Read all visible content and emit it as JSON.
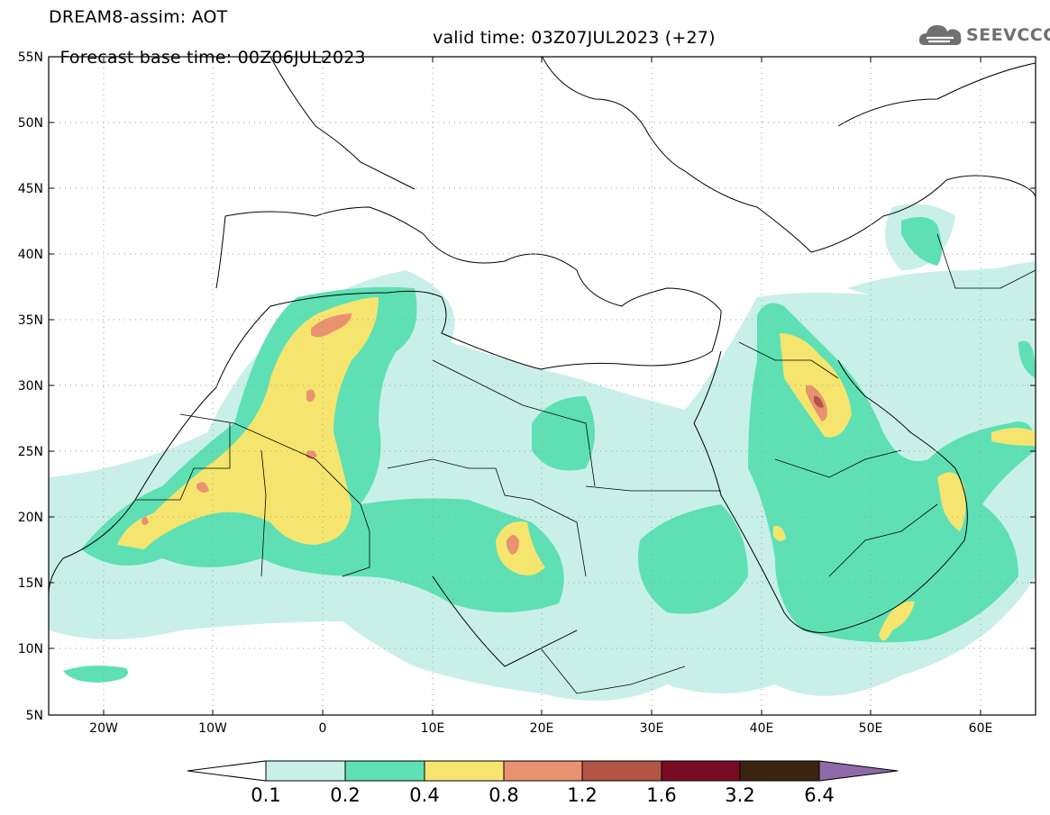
{
  "header": {
    "title": "DREAM8-assim: AOT",
    "base_time": "Forecast base time: 00Z06JUL2023",
    "valid_time": "valid time: 03Z07JUL2023 (+27)"
  },
  "logo": {
    "text": "SEEVCCC",
    "icon": "cloud-icon"
  },
  "map": {
    "lat_ticks": [
      "55N",
      "50N",
      "45N",
      "40N",
      "35N",
      "30N",
      "25N",
      "20N",
      "15N",
      "10N",
      "5N"
    ],
    "lon_ticks": [
      "20W",
      "10W",
      "0",
      "10E",
      "20E",
      "30E",
      "40E",
      "50E",
      "60E"
    ],
    "lat_values": [
      55,
      50,
      45,
      40,
      35,
      30,
      25,
      20,
      15,
      10,
      5
    ],
    "lon_values": [
      -20,
      -10,
      0,
      10,
      20,
      30,
      40,
      50,
      60
    ],
    "extent": {
      "lon": [
        -25,
        65
      ],
      "lat": [
        5,
        55
      ]
    },
    "grid": "dotted"
  },
  "colorbar": {
    "labels": [
      "0.1",
      "0.2",
      "0.4",
      "0.8",
      "1.2",
      "1.6",
      "3.2",
      "6.4"
    ],
    "colors": [
      "#ffffff",
      "#c8f0e8",
      "#5ee0b4",
      "#f5e56e",
      "#e99270",
      "#b25545",
      "#7a0b25",
      "#3b2412",
      "#8e6aa8"
    ]
  },
  "fill_colors": {
    "level1": "#c8f0e8",
    "level2": "#5ee0b4",
    "level3": "#f5e56e",
    "level4": "#e99270",
    "level5": "#b25545"
  }
}
